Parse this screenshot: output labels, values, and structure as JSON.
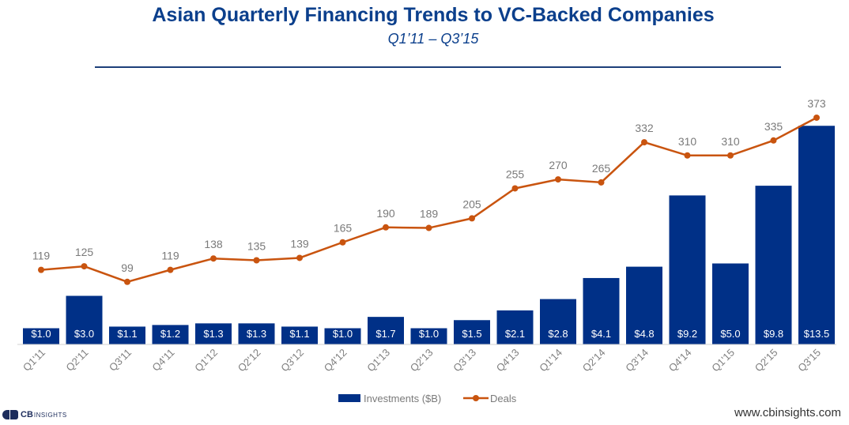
{
  "title": "Asian Quarterly Financing Trends to VC-Backed Companies",
  "subtitle": "Q1’11 – Q3’15",
  "footer": {
    "url": "www.cbinsights.com",
    "logo_cb": "CB",
    "logo_insights": "INSIGHTS"
  },
  "colors": {
    "bars": "#003087",
    "line": "#c9540f",
    "title": "#0b3f8c"
  },
  "chart_data": {
    "type": "bar",
    "title": "Asian Quarterly Financing Trends to VC-Backed Companies",
    "subtitle": "Q1’11 – Q3’15",
    "categories": [
      "Q1'11",
      "Q2'11",
      "Q3'11",
      "Q4'11",
      "Q1'12",
      "Q2'12",
      "Q3'12",
      "Q4'12",
      "Q1'13",
      "Q2'13",
      "Q3'13",
      "Q4'13",
      "Q1'14",
      "Q2'14",
      "Q3'14",
      "Q4'14",
      "Q1'15",
      "Q2'15",
      "Q3'15"
    ],
    "series": [
      {
        "name": "Investments ($B)",
        "type": "bar",
        "values": [
          1.0,
          3.0,
          1.1,
          1.2,
          1.3,
          1.3,
          1.1,
          1.0,
          1.7,
          1.0,
          1.5,
          2.1,
          2.8,
          4.1,
          4.8,
          9.2,
          5.0,
          9.8,
          13.5
        ],
        "labels": [
          "$1.0",
          "$3.0",
          "$1.1",
          "$1.2",
          "$1.3",
          "$1.3",
          "$1.1",
          "$1.0",
          "$1.7",
          "$1.0",
          "$1.5",
          "$2.1",
          "$2.8",
          "$4.1",
          "$4.8",
          "$9.2",
          "$5.0",
          "$9.8",
          "$13.5"
        ]
      },
      {
        "name": "Deals",
        "type": "line",
        "values": [
          119,
          125,
          99,
          119,
          138,
          135,
          139,
          165,
          190,
          189,
          205,
          255,
          270,
          265,
          332,
          310,
          310,
          335,
          373
        ]
      }
    ],
    "legend": "bottom",
    "grid": false
  }
}
